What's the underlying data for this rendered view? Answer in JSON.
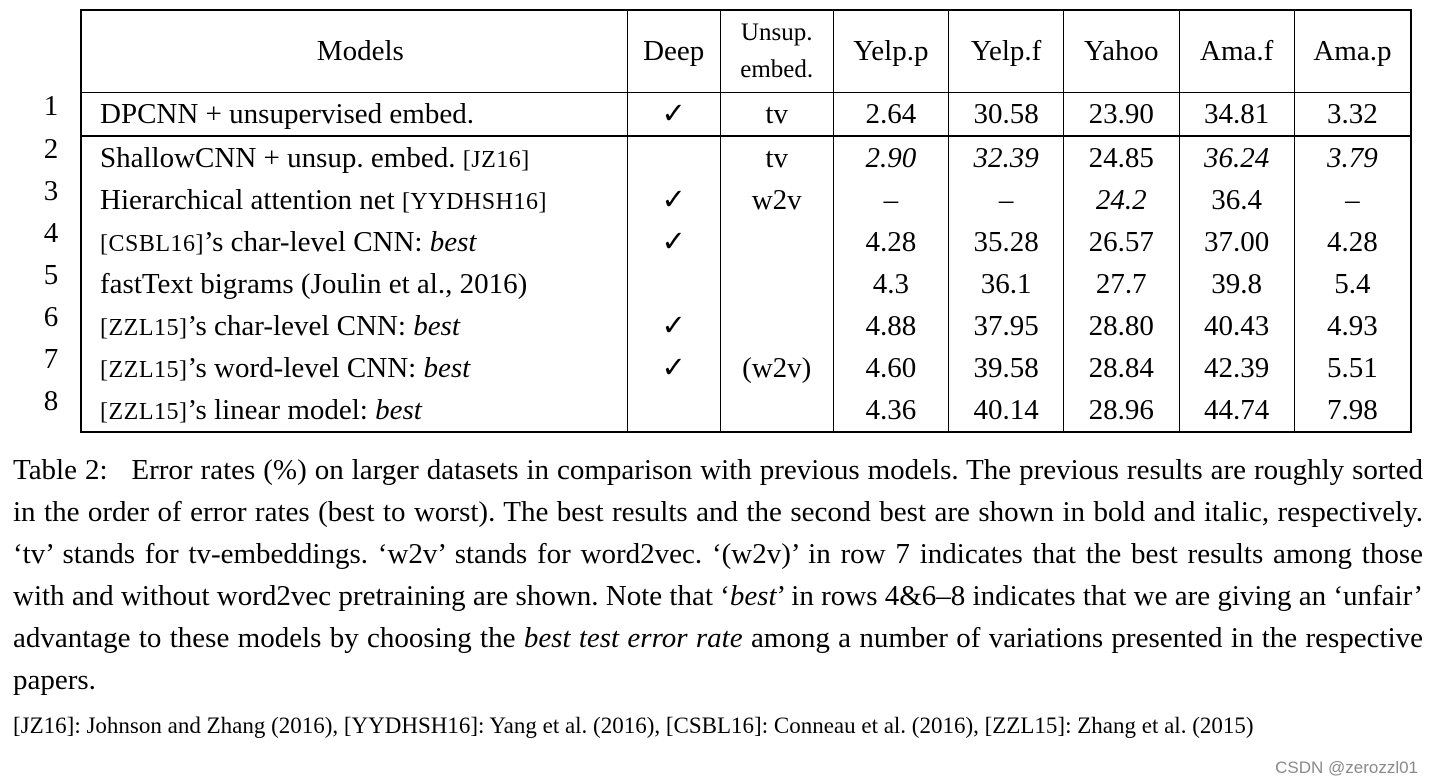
{
  "table": {
    "headers": {
      "models": "Models",
      "deep": "Deep",
      "unsup_line1": "Unsup.",
      "unsup_line2": "embed.",
      "yelp_p": "Yelp.p",
      "yelp_f": "Yelp.f",
      "yahoo": "Yahoo",
      "ama_f": "Ama.f",
      "ama_p": "Ama.p"
    },
    "rows": [
      {
        "num": "1",
        "model": "DPCNN + unsupervised embed.",
        "ref": "",
        "model_suffix": "",
        "best": "",
        "deep": "✓",
        "unsup": "tv",
        "yelp_p": "2.64",
        "yelp_f": "30.58",
        "yahoo": "23.90",
        "ama_f": "34.81",
        "ama_p": "3.32"
      },
      {
        "num": "2",
        "model": "ShallowCNN + unsup. embed. ",
        "ref": "[JZ16]",
        "model_suffix": "",
        "best": "",
        "deep": "",
        "unsup": "tv",
        "yelp_p": "2.90",
        "yelp_f": "32.39",
        "yahoo": "24.85",
        "ama_f": "36.24",
        "ama_p": "3.79"
      },
      {
        "num": "3",
        "model": "Hierarchical attention net ",
        "ref": "[YYDHSH16]",
        "model_suffix": "",
        "best": "",
        "deep": "✓",
        "unsup": "w2v",
        "yelp_p": "–",
        "yelp_f": "–",
        "yahoo": "24.2",
        "ama_f": "36.4",
        "ama_p": "–"
      },
      {
        "num": "4",
        "model": "",
        "ref": "[CSBL16]",
        "model_suffix": "’s char-level CNN: ",
        "best": "best",
        "deep": "✓",
        "unsup": "",
        "yelp_p": "4.28",
        "yelp_f": "35.28",
        "yahoo": "26.57",
        "ama_f": "37.00",
        "ama_p": "4.28"
      },
      {
        "num": "5",
        "model": "fastText bigrams (Joulin et al., 2016)",
        "ref": "",
        "model_suffix": "",
        "best": "",
        "deep": "",
        "unsup": "",
        "yelp_p": "4.3",
        "yelp_f": "36.1",
        "yahoo": "27.7",
        "ama_f": "39.8",
        "ama_p": "5.4"
      },
      {
        "num": "6",
        "model": "",
        "ref": "[ZZL15]",
        "model_suffix": "’s char-level CNN: ",
        "best": "best",
        "deep": "✓",
        "unsup": "",
        "yelp_p": "4.88",
        "yelp_f": "37.95",
        "yahoo": "28.80",
        "ama_f": "40.43",
        "ama_p": "4.93"
      },
      {
        "num": "7",
        "model": "",
        "ref": "[ZZL15]",
        "model_suffix": "’s word-level CNN: ",
        "best": "best",
        "deep": "✓",
        "unsup": "(w2v)",
        "yelp_p": "4.60",
        "yelp_f": "39.58",
        "yahoo": "28.84",
        "ama_f": "42.39",
        "ama_p": "5.51"
      },
      {
        "num": "8",
        "model": "",
        "ref": "[ZZL15]",
        "model_suffix": "’s linear model: ",
        "best": "best",
        "deep": "",
        "unsup": "",
        "yelp_p": "4.36",
        "yelp_f": "40.14",
        "yahoo": "28.96",
        "ama_f": "44.74",
        "ama_p": "7.98"
      }
    ]
  },
  "caption": {
    "label": "Table 2:",
    "text_1": "Error rates (%) on larger datasets in comparison with previous models. The previous results are roughly sorted in the order of error rates (best to worst). The best results and the second best are shown in bold and italic, respectively. ‘tv’ stands for tv-embeddings. ‘w2v’ stands for word2vec. ‘(w2v)’ in row 7 indicates that the best results among those with and without word2vec pretraining are shown. Note that ‘",
    "best_word": "best",
    "text_2": "’ in rows 4&6–8 indicates that we are giving an ‘unfair’ advantage to these models by choosing the ",
    "best_test_error": "best test error rate",
    "text_3": " among a number of variations presented in the respective papers."
  },
  "references": "[JZ16]: Johnson and Zhang (2016), [YYDHSH16]: Yang et al. (2016), [CSBL16]: Conneau et al. (2016), [ZZL15]: Zhang et al. (2015)",
  "watermark": "CSDN @zerozzl01"
}
